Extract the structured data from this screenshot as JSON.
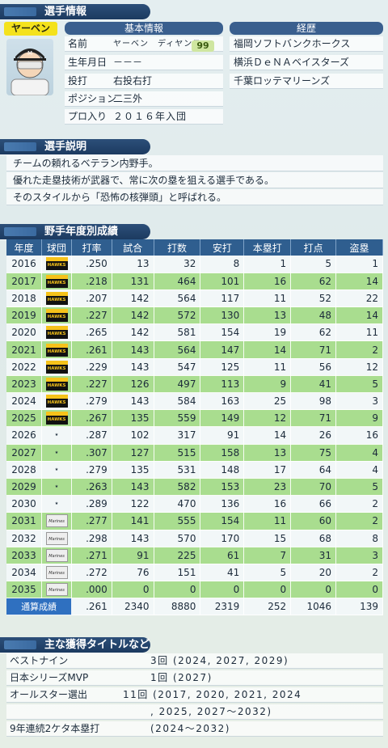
{
  "sections": {
    "player_info": "選手情報",
    "description": "選手説明",
    "stats": "野手年度別成績",
    "titles": "主な獲得タイトルなど"
  },
  "player": {
    "name_tag": "ヤーベン",
    "basic_header": "基本情報",
    "career_header": "経歴",
    "rating": "99",
    "rows": [
      {
        "label": "名前",
        "value": "ヤーベン　ディヤンス"
      },
      {
        "label": "生年月日",
        "value": "－－－"
      },
      {
        "label": "投打",
        "value": "右投右打"
      },
      {
        "label": "ポジション",
        "value": "二三外"
      },
      {
        "label": "プロ入り",
        "value": "２０１６年入団"
      }
    ],
    "career": [
      "福岡ソフトバンクホークス",
      "横浜ＤｅＮＡベイスターズ",
      "千葉ロッテマリーンズ"
    ]
  },
  "description": [
    "チームの頼れるベテラン内野手。",
    "優れた走塁技術が武器で、常に次の塁を狙える選手である。",
    "そのスタイルから「恐怖の核弾頭」と呼ばれる。"
  ],
  "stats": {
    "headers": [
      "年度",
      "球団",
      "打率",
      "試合",
      "打数",
      "安打",
      "本塁打",
      "打点",
      "盗塁"
    ],
    "rows": [
      {
        "year": "2016",
        "team": "hawks",
        "avg": ".250",
        "g": "13",
        "ab": "32",
        "h": "8",
        "hr": "1",
        "rbi": "5",
        "sb": "1"
      },
      {
        "year": "2017",
        "team": "hawks",
        "avg": ".218",
        "g": "131",
        "ab": "464",
        "h": "101",
        "hr": "16",
        "rbi": "62",
        "sb": "14"
      },
      {
        "year": "2018",
        "team": "hawks",
        "avg": ".207",
        "g": "142",
        "ab": "564",
        "h": "117",
        "hr": "11",
        "rbi": "52",
        "sb": "22"
      },
      {
        "year": "2019",
        "team": "hawks",
        "avg": ".227",
        "g": "142",
        "ab": "572",
        "h": "130",
        "hr": "13",
        "rbi": "48",
        "sb": "14"
      },
      {
        "year": "2020",
        "team": "hawks",
        "avg": ".265",
        "g": "142",
        "ab": "581",
        "h": "154",
        "hr": "19",
        "rbi": "62",
        "sb": "11"
      },
      {
        "year": "2021",
        "team": "hawks",
        "avg": ".261",
        "g": "143",
        "ab": "564",
        "h": "147",
        "hr": "14",
        "rbi": "71",
        "sb": "2"
      },
      {
        "year": "2022",
        "team": "hawks",
        "avg": ".229",
        "g": "143",
        "ab": "547",
        "h": "125",
        "hr": "11",
        "rbi": "56",
        "sb": "12"
      },
      {
        "year": "2023",
        "team": "hawks",
        "avg": ".227",
        "g": "126",
        "ab": "497",
        "h": "113",
        "hr": "9",
        "rbi": "41",
        "sb": "5"
      },
      {
        "year": "2024",
        "team": "hawks",
        "avg": ".279",
        "g": "143",
        "ab": "584",
        "h": "163",
        "hr": "25",
        "rbi": "98",
        "sb": "3"
      },
      {
        "year": "2025",
        "team": "hawks",
        "avg": ".267",
        "g": "135",
        "ab": "559",
        "h": "149",
        "hr": "12",
        "rbi": "71",
        "sb": "9"
      },
      {
        "year": "2026",
        "team": "baystars",
        "avg": ".287",
        "g": "102",
        "ab": "317",
        "h": "91",
        "hr": "14",
        "rbi": "26",
        "sb": "16"
      },
      {
        "year": "2027",
        "team": "baystars",
        "avg": ".307",
        "g": "127",
        "ab": "515",
        "h": "158",
        "hr": "13",
        "rbi": "75",
        "sb": "4"
      },
      {
        "year": "2028",
        "team": "baystars",
        "avg": ".279",
        "g": "135",
        "ab": "531",
        "h": "148",
        "hr": "17",
        "rbi": "64",
        "sb": "4"
      },
      {
        "year": "2029",
        "team": "baystars",
        "avg": ".263",
        "g": "143",
        "ab": "582",
        "h": "153",
        "hr": "23",
        "rbi": "70",
        "sb": "5"
      },
      {
        "year": "2030",
        "team": "baystars",
        "avg": ".289",
        "g": "122",
        "ab": "470",
        "h": "136",
        "hr": "16",
        "rbi": "66",
        "sb": "2"
      },
      {
        "year": "2031",
        "team": "marines",
        "avg": ".277",
        "g": "141",
        "ab": "555",
        "h": "154",
        "hr": "11",
        "rbi": "60",
        "sb": "2"
      },
      {
        "year": "2032",
        "team": "marines",
        "avg": ".298",
        "g": "143",
        "ab": "570",
        "h": "170",
        "hr": "15",
        "rbi": "68",
        "sb": "8"
      },
      {
        "year": "2033",
        "team": "marines",
        "avg": ".271",
        "g": "91",
        "ab": "225",
        "h": "61",
        "hr": "7",
        "rbi": "31",
        "sb": "3"
      },
      {
        "year": "2034",
        "team": "marines",
        "avg": ".272",
        "g": "76",
        "ab": "151",
        "h": "41",
        "hr": "5",
        "rbi": "20",
        "sb": "2"
      },
      {
        "year": "2035",
        "team": "marines",
        "avg": ".000",
        "g": "0",
        "ab": "0",
        "h": "0",
        "hr": "0",
        "rbi": "0",
        "sb": "0"
      }
    ],
    "total": {
      "label": "通算成績",
      "avg": ".261",
      "g": "2340",
      "ab": "8880",
      "h": "2319",
      "hr": "252",
      "rbi": "1046",
      "sb": "139"
    },
    "team_logos": {
      "hawks": "HAWKS",
      "baystars": "★",
      "marines": "Marines"
    }
  },
  "titles": [
    {
      "name": "ベストナイン",
      "value": "3回 (2024, 2027, 2029)"
    },
    {
      "name": "日本シリーズMVP",
      "value": "1回 (2027)"
    },
    {
      "name": "オールスター選出",
      "value": "11回 (2017, 2020, 2021, 2024"
    },
    {
      "name": "",
      "value": ", 2025, 2027〜2032)"
    },
    {
      "name": "9年連続2ケタ本塁打",
      "value": "(2024〜2032)"
    }
  ]
}
